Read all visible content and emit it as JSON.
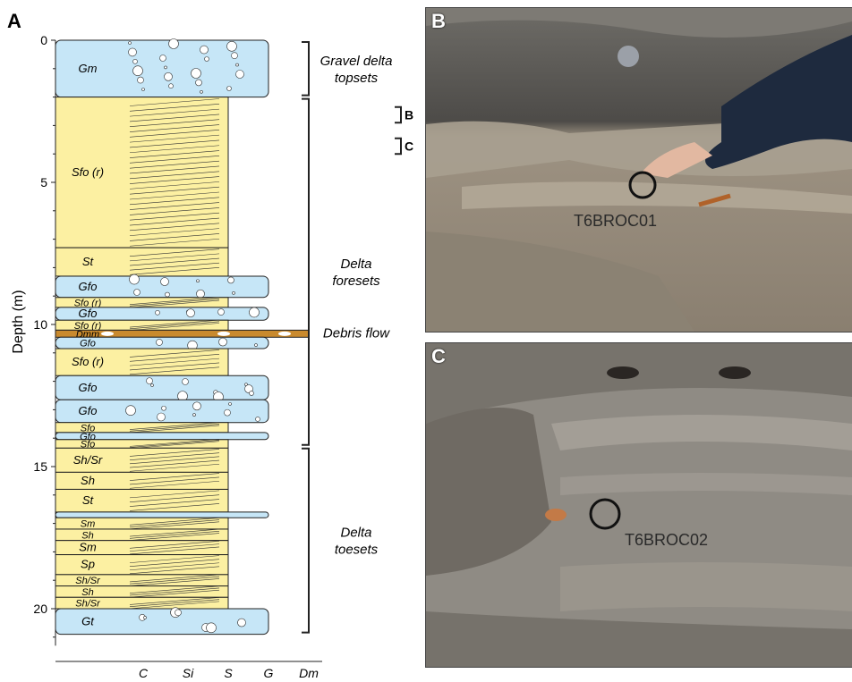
{
  "panels": {
    "a": "A",
    "b": "B",
    "c": "C"
  },
  "axis": {
    "ylabel": "Depth (m)",
    "depth_ticks": [
      "0",
      "5",
      "10",
      "15",
      "20"
    ],
    "grain_ticks": [
      "C",
      "Si",
      "S",
      "G",
      "Dm"
    ]
  },
  "units": [
    {
      "code": "Gm",
      "top": 0,
      "base": 2.0,
      "color": "gravel"
    },
    {
      "code": "Sfo (r)",
      "top": 2.0,
      "base": 7.3,
      "color": "sand"
    },
    {
      "code": "St",
      "top": 7.3,
      "base": 8.3,
      "color": "sand"
    },
    {
      "code": "Gfo",
      "top": 8.3,
      "base": 9.05,
      "color": "gravel"
    },
    {
      "code": "Sfo (r)",
      "top": 9.05,
      "base": 9.4,
      "color": "sand"
    },
    {
      "code": "Gfo",
      "top": 9.4,
      "base": 9.85,
      "color": "gravel"
    },
    {
      "code": "Sfo (r)",
      "top": 9.85,
      "base": 10.2,
      "color": "sand"
    },
    {
      "code": "Dmm",
      "top": 10.2,
      "base": 10.45,
      "color": "diamict"
    },
    {
      "code": "Gfo",
      "top": 10.45,
      "base": 10.85,
      "color": "gravel"
    },
    {
      "code": "Sfo (r)",
      "top": 10.85,
      "base": 11.8,
      "color": "sand"
    },
    {
      "code": "Gfo",
      "top": 11.8,
      "base": 12.65,
      "color": "gravel"
    },
    {
      "code": "Gfo",
      "top": 12.65,
      "base": 13.45,
      "color": "gravel"
    },
    {
      "code": "Sfo",
      "top": 13.45,
      "base": 13.8,
      "color": "sand"
    },
    {
      "code": "Gfo",
      "top": 13.8,
      "base": 14.05,
      "color": "gravel"
    },
    {
      "code": "Sfo",
      "top": 14.05,
      "base": 14.35,
      "color": "sand"
    },
    {
      "code": "Sh/Sr",
      "top": 14.35,
      "base": 15.2,
      "color": "sand"
    },
    {
      "code": "Sh",
      "top": 15.2,
      "base": 15.8,
      "color": "sand"
    },
    {
      "code": "St",
      "top": 15.8,
      "base": 16.6,
      "color": "sand"
    },
    {
      "code": "",
      "top": 16.6,
      "base": 16.8,
      "color": "gravel"
    },
    {
      "code": "Sm",
      "top": 16.8,
      "base": 17.2,
      "color": "sand"
    },
    {
      "code": "Sh",
      "top": 17.2,
      "base": 17.6,
      "color": "sand"
    },
    {
      "code": "Sm",
      "top": 17.6,
      "base": 18.1,
      "color": "sand"
    },
    {
      "code": "Sp",
      "top": 18.1,
      "base": 18.8,
      "color": "sand"
    },
    {
      "code": "Sh/Sr",
      "top": 18.8,
      "base": 19.2,
      "color": "sand"
    },
    {
      "code": "Sh",
      "top": 19.2,
      "base": 19.6,
      "color": "sand"
    },
    {
      "code": "Sh/Sr",
      "top": 19.6,
      "base": 20.0,
      "color": "sand"
    },
    {
      "code": "Gt",
      "top": 20.0,
      "base": 20.9,
      "color": "gravel"
    }
  ],
  "facies_zones": [
    {
      "label": "Gravel delta topsets",
      "top": 0.0,
      "base": 2.0
    },
    {
      "label": "Delta foresets",
      "top": 2.0,
      "base": 14.3
    },
    {
      "label": "Delta toesets",
      "top": 14.3,
      "base": 20.9
    }
  ],
  "debris_flow": {
    "label": "Debris flow",
    "depth": 10.3
  },
  "photo_markers": [
    {
      "label": "B",
      "top": 2.35,
      "base": 2.9
    },
    {
      "label": "C",
      "top": 3.45,
      "base": 4.0
    }
  ],
  "samples": {
    "b": "T6BROC01",
    "c": "T6BROC02"
  },
  "colors": {
    "gravel": "#c6e6f7",
    "sand": "#fcf0a2",
    "diamict": "#c98a2e",
    "line": "#222222"
  }
}
